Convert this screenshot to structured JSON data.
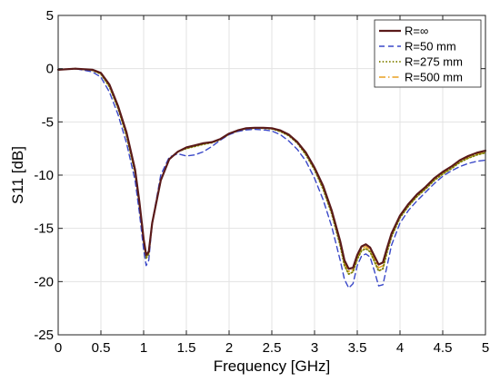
{
  "chart_data": {
    "type": "line",
    "title": "",
    "xlabel": "Frequency [GHz]",
    "ylabel": "S11 [dB]",
    "xlim": [
      0,
      5
    ],
    "ylim": [
      -25,
      5
    ],
    "xticks": [
      0,
      0.5,
      1,
      1.5,
      2,
      2.5,
      3,
      3.5,
      4,
      4.5,
      5
    ],
    "xtick_labels": [
      "0",
      "0.5",
      "1",
      "1.5",
      "2",
      "2.5",
      "3",
      "3.5",
      "4",
      "4.5",
      "5"
    ],
    "yticks": [
      5,
      0,
      -5,
      -10,
      -15,
      -20,
      -25
    ],
    "ytick_labels": [
      "5",
      "0",
      "-5",
      "-10",
      "-15",
      "-20",
      "-25"
    ],
    "grid": true,
    "legend_position": "top-right",
    "series": [
      {
        "name": "R=∞",
        "color": "#5a1a1a",
        "style": "solid",
        "points": [
          [
            0,
            -0.1
          ],
          [
            0.2,
            0
          ],
          [
            0.4,
            -0.1
          ],
          [
            0.5,
            -0.4
          ],
          [
            0.6,
            -1.5
          ],
          [
            0.7,
            -3.5
          ],
          [
            0.8,
            -6
          ],
          [
            0.9,
            -9.5
          ],
          [
            0.95,
            -12.5
          ],
          [
            1.0,
            -16
          ],
          [
            1.03,
            -17.5
          ],
          [
            1.06,
            -17.2
          ],
          [
            1.1,
            -14.5
          ],
          [
            1.2,
            -10.5
          ],
          [
            1.3,
            -8.5
          ],
          [
            1.4,
            -7.8
          ],
          [
            1.5,
            -7.4
          ],
          [
            1.6,
            -7.2
          ],
          [
            1.7,
            -7.0
          ],
          [
            1.8,
            -6.9
          ],
          [
            1.9,
            -6.6
          ],
          [
            2.0,
            -6.1
          ],
          [
            2.1,
            -5.8
          ],
          [
            2.2,
            -5.6
          ],
          [
            2.3,
            -5.55
          ],
          [
            2.4,
            -5.55
          ],
          [
            2.5,
            -5.6
          ],
          [
            2.6,
            -5.8
          ],
          [
            2.7,
            -6.2
          ],
          [
            2.8,
            -6.9
          ],
          [
            2.9,
            -7.9
          ],
          [
            3.0,
            -9.3
          ],
          [
            3.1,
            -11
          ],
          [
            3.2,
            -13.3
          ],
          [
            3.3,
            -16.2
          ],
          [
            3.35,
            -18
          ],
          [
            3.4,
            -18.8
          ],
          [
            3.45,
            -18.7
          ],
          [
            3.5,
            -17.5
          ],
          [
            3.55,
            -16.7
          ],
          [
            3.6,
            -16.5
          ],
          [
            3.65,
            -16.8
          ],
          [
            3.7,
            -17.6
          ],
          [
            3.75,
            -18.4
          ],
          [
            3.8,
            -18.2
          ],
          [
            3.85,
            -16.8
          ],
          [
            3.9,
            -15.5
          ],
          [
            4.0,
            -13.8
          ],
          [
            4.1,
            -12.7
          ],
          [
            4.2,
            -11.8
          ],
          [
            4.3,
            -11.1
          ],
          [
            4.4,
            -10.3
          ],
          [
            4.5,
            -9.7
          ],
          [
            4.6,
            -9.2
          ],
          [
            4.7,
            -8.6
          ],
          [
            4.8,
            -8.2
          ],
          [
            4.9,
            -7.9
          ],
          [
            5.0,
            -7.7
          ]
        ]
      },
      {
        "name": "R=50 mm",
        "color": "#3a48c8",
        "style": "dashed",
        "points": [
          [
            0,
            -0.1
          ],
          [
            0.2,
            0
          ],
          [
            0.4,
            -0.3
          ],
          [
            0.5,
            -0.8
          ],
          [
            0.6,
            -2.2
          ],
          [
            0.7,
            -4.3
          ],
          [
            0.8,
            -7
          ],
          [
            0.9,
            -10.5
          ],
          [
            0.95,
            -13.5
          ],
          [
            1.0,
            -17
          ],
          [
            1.03,
            -18.5
          ],
          [
            1.06,
            -18
          ],
          [
            1.1,
            -14.5
          ],
          [
            1.2,
            -10
          ],
          [
            1.3,
            -8.3
          ],
          [
            1.4,
            -8
          ],
          [
            1.5,
            -8.2
          ],
          [
            1.6,
            -8.1
          ],
          [
            1.7,
            -7.8
          ],
          [
            1.8,
            -7.3
          ],
          [
            1.9,
            -6.7
          ],
          [
            2.0,
            -6.2
          ],
          [
            2.1,
            -5.9
          ],
          [
            2.2,
            -5.75
          ],
          [
            2.3,
            -5.7
          ],
          [
            2.4,
            -5.75
          ],
          [
            2.5,
            -5.85
          ],
          [
            2.6,
            -6.2
          ],
          [
            2.7,
            -6.8
          ],
          [
            2.8,
            -7.6
          ],
          [
            2.9,
            -8.7
          ],
          [
            3.0,
            -10.3
          ],
          [
            3.1,
            -12.3
          ],
          [
            3.2,
            -14.8
          ],
          [
            3.3,
            -18
          ],
          [
            3.35,
            -19.8
          ],
          [
            3.4,
            -20.6
          ],
          [
            3.45,
            -20.2
          ],
          [
            3.5,
            -18.5
          ],
          [
            3.55,
            -17.6
          ],
          [
            3.6,
            -17.4
          ],
          [
            3.65,
            -17.7
          ],
          [
            3.7,
            -19
          ],
          [
            3.75,
            -20.4
          ],
          [
            3.8,
            -20.3
          ],
          [
            3.85,
            -18.5
          ],
          [
            3.9,
            -16.6
          ],
          [
            4.0,
            -14.5
          ],
          [
            4.1,
            -13.3
          ],
          [
            4.2,
            -12.4
          ],
          [
            4.3,
            -11.6
          ],
          [
            4.4,
            -10.8
          ],
          [
            4.5,
            -10.1
          ],
          [
            4.6,
            -9.6
          ],
          [
            4.7,
            -9.2
          ],
          [
            4.8,
            -8.9
          ],
          [
            4.9,
            -8.7
          ],
          [
            5.0,
            -8.6
          ]
        ]
      },
      {
        "name": "R=275 mm",
        "color": "#808000",
        "style": "dotted",
        "points": [
          [
            0,
            -0.1
          ],
          [
            0.2,
            0
          ],
          [
            0.4,
            -0.15
          ],
          [
            0.5,
            -0.5
          ],
          [
            0.6,
            -1.7
          ],
          [
            0.7,
            -3.7
          ],
          [
            0.8,
            -6.3
          ],
          [
            0.9,
            -9.8
          ],
          [
            0.95,
            -12.8
          ],
          [
            1.0,
            -16.3
          ],
          [
            1.03,
            -17.8
          ],
          [
            1.06,
            -17.4
          ],
          [
            1.1,
            -14.5
          ],
          [
            1.2,
            -10.5
          ],
          [
            1.3,
            -8.5
          ],
          [
            1.4,
            -7.8
          ],
          [
            1.5,
            -7.5
          ],
          [
            1.6,
            -7.3
          ],
          [
            1.7,
            -7.1
          ],
          [
            1.8,
            -6.95
          ],
          [
            1.9,
            -6.65
          ],
          [
            2.0,
            -6.15
          ],
          [
            2.1,
            -5.85
          ],
          [
            2.2,
            -5.65
          ],
          [
            2.3,
            -5.6
          ],
          [
            2.4,
            -5.6
          ],
          [
            2.5,
            -5.65
          ],
          [
            2.6,
            -5.9
          ],
          [
            2.7,
            -6.3
          ],
          [
            2.8,
            -7.0
          ],
          [
            2.9,
            -8.1
          ],
          [
            3.0,
            -9.5
          ],
          [
            3.1,
            -11.3
          ],
          [
            3.2,
            -13.6
          ],
          [
            3.3,
            -16.6
          ],
          [
            3.35,
            -18.5
          ],
          [
            3.4,
            -19.3
          ],
          [
            3.45,
            -19.1
          ],
          [
            3.5,
            -17.9
          ],
          [
            3.55,
            -17.1
          ],
          [
            3.6,
            -16.9
          ],
          [
            3.65,
            -17.2
          ],
          [
            3.7,
            -18.1
          ],
          [
            3.75,
            -19.0
          ],
          [
            3.8,
            -18.8
          ],
          [
            3.85,
            -17.2
          ],
          [
            3.9,
            -15.8
          ],
          [
            4.0,
            -14.0
          ],
          [
            4.1,
            -12.9
          ],
          [
            4.2,
            -12.0
          ],
          [
            4.3,
            -11.3
          ],
          [
            4.4,
            -10.5
          ],
          [
            4.5,
            -9.9
          ],
          [
            4.6,
            -9.4
          ],
          [
            4.7,
            -8.8
          ],
          [
            4.8,
            -8.4
          ],
          [
            4.9,
            -8.1
          ],
          [
            5.0,
            -7.9
          ]
        ]
      },
      {
        "name": "R=500 mm",
        "color": "#e8a020",
        "style": "dashdot",
        "points": [
          [
            0,
            -0.1
          ],
          [
            0.2,
            0
          ],
          [
            0.4,
            -0.12
          ],
          [
            0.5,
            -0.45
          ],
          [
            0.6,
            -1.6
          ],
          [
            0.7,
            -3.6
          ],
          [
            0.8,
            -6.2
          ],
          [
            0.9,
            -9.7
          ],
          [
            0.95,
            -12.7
          ],
          [
            1.0,
            -16.2
          ],
          [
            1.03,
            -17.7
          ],
          [
            1.06,
            -17.3
          ],
          [
            1.1,
            -14.5
          ],
          [
            1.2,
            -10.5
          ],
          [
            1.3,
            -8.5
          ],
          [
            1.4,
            -7.8
          ],
          [
            1.5,
            -7.45
          ],
          [
            1.6,
            -7.25
          ],
          [
            1.7,
            -7.05
          ],
          [
            1.8,
            -6.92
          ],
          [
            1.9,
            -6.62
          ],
          [
            2.0,
            -6.12
          ],
          [
            2.1,
            -5.82
          ],
          [
            2.2,
            -5.62
          ],
          [
            2.3,
            -5.57
          ],
          [
            2.4,
            -5.57
          ],
          [
            2.5,
            -5.62
          ],
          [
            2.6,
            -5.85
          ],
          [
            2.7,
            -6.25
          ],
          [
            2.8,
            -6.95
          ],
          [
            2.9,
            -8.0
          ],
          [
            3.0,
            -9.4
          ],
          [
            3.1,
            -11.15
          ],
          [
            3.2,
            -13.45
          ],
          [
            3.3,
            -16.4
          ],
          [
            3.35,
            -18.25
          ],
          [
            3.4,
            -19.05
          ],
          [
            3.45,
            -18.9
          ],
          [
            3.5,
            -17.7
          ],
          [
            3.55,
            -16.9
          ],
          [
            3.6,
            -16.7
          ],
          [
            3.65,
            -17.0
          ],
          [
            3.7,
            -17.85
          ],
          [
            3.75,
            -18.7
          ],
          [
            3.8,
            -18.5
          ],
          [
            3.85,
            -17.0
          ],
          [
            3.9,
            -15.65
          ],
          [
            4.0,
            -13.9
          ],
          [
            4.1,
            -12.8
          ],
          [
            4.2,
            -11.9
          ],
          [
            4.3,
            -11.2
          ],
          [
            4.4,
            -10.4
          ],
          [
            4.5,
            -9.8
          ],
          [
            4.6,
            -9.3
          ],
          [
            4.7,
            -8.7
          ],
          [
            4.8,
            -8.3
          ],
          [
            4.9,
            -8.0
          ],
          [
            5.0,
            -7.8
          ]
        ]
      }
    ]
  }
}
